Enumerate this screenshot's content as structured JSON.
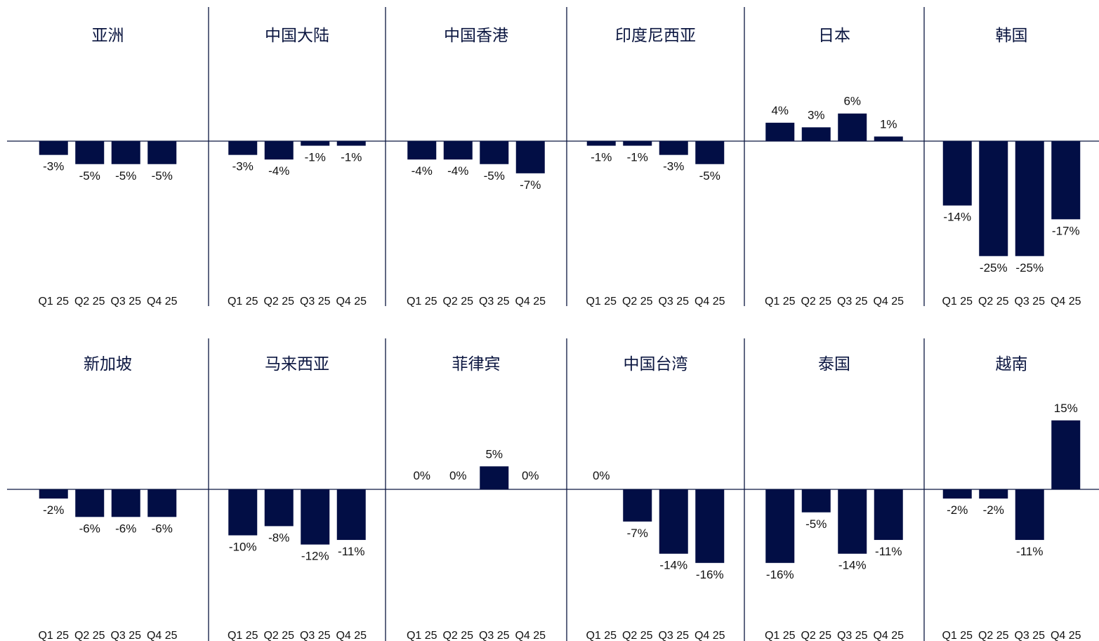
{
  "colors": {
    "bar": "#020e45",
    "axis": "#0b1640",
    "divider": "#0b1640",
    "text": "#111111"
  },
  "chart_data": {
    "type": "bar",
    "value_suffix": "%",
    "categories": [
      "Q1 25",
      "Q2 25",
      "Q3 25",
      "Q4 25"
    ],
    "panels": [
      {
        "title": "亚洲",
        "values": [
          -3,
          -5,
          -5,
          -5
        ],
        "labels": [
          "-3%",
          "-5%",
          "-5%",
          "-5%"
        ]
      },
      {
        "title": "中国大陆",
        "values": [
          -3,
          -4,
          -1,
          -1
        ],
        "labels": [
          "-3%",
          "-4%",
          "-1%",
          "-1%"
        ]
      },
      {
        "title": "中国香港",
        "values": [
          -4,
          -4,
          -5,
          -7
        ],
        "labels": [
          "-4%",
          "-4%",
          "-5%",
          "-7%"
        ]
      },
      {
        "title": "印度尼西亚",
        "values": [
          -1,
          -1,
          -3,
          -5
        ],
        "labels": [
          "-1%",
          "-1%",
          "-3%",
          "-5%"
        ]
      },
      {
        "title": "日本",
        "values": [
          4,
          3,
          6,
          1
        ],
        "labels": [
          "4%",
          "3%",
          "6%",
          "1%"
        ]
      },
      {
        "title": "韩国",
        "values": [
          -14,
          -25,
          -25,
          -17
        ],
        "labels": [
          "-14%",
          "-25%",
          "-25%",
          "-17%"
        ]
      },
      {
        "title": "新加坡",
        "values": [
          -2,
          -6,
          -6,
          -6
        ],
        "labels": [
          "-2%",
          "-6%",
          "-6%",
          "-6%"
        ]
      },
      {
        "title": "马来西亚",
        "values": [
          -10,
          -8,
          -12,
          -11
        ],
        "labels": [
          "-10%",
          "-8%",
          "-12%",
          "-11%"
        ]
      },
      {
        "title": "菲律宾",
        "values": [
          0,
          0,
          5,
          0
        ],
        "labels": [
          "0%",
          "0%",
          "5%",
          "0%"
        ]
      },
      {
        "title": "中国台湾",
        "values": [
          0,
          -7,
          -14,
          -16
        ],
        "labels": [
          "0%",
          "-7%",
          "-14%",
          "-16%"
        ]
      },
      {
        "title": "泰国",
        "values": [
          -16,
          -5,
          -14,
          -11
        ],
        "labels": [
          "-16%",
          "-5%",
          "-14%",
          "-11%"
        ]
      },
      {
        "title": "越南",
        "values": [
          -2,
          -2,
          -11,
          15
        ],
        "labels": [
          "-2%",
          "-2%",
          "-11%",
          "15%"
        ]
      }
    ]
  }
}
